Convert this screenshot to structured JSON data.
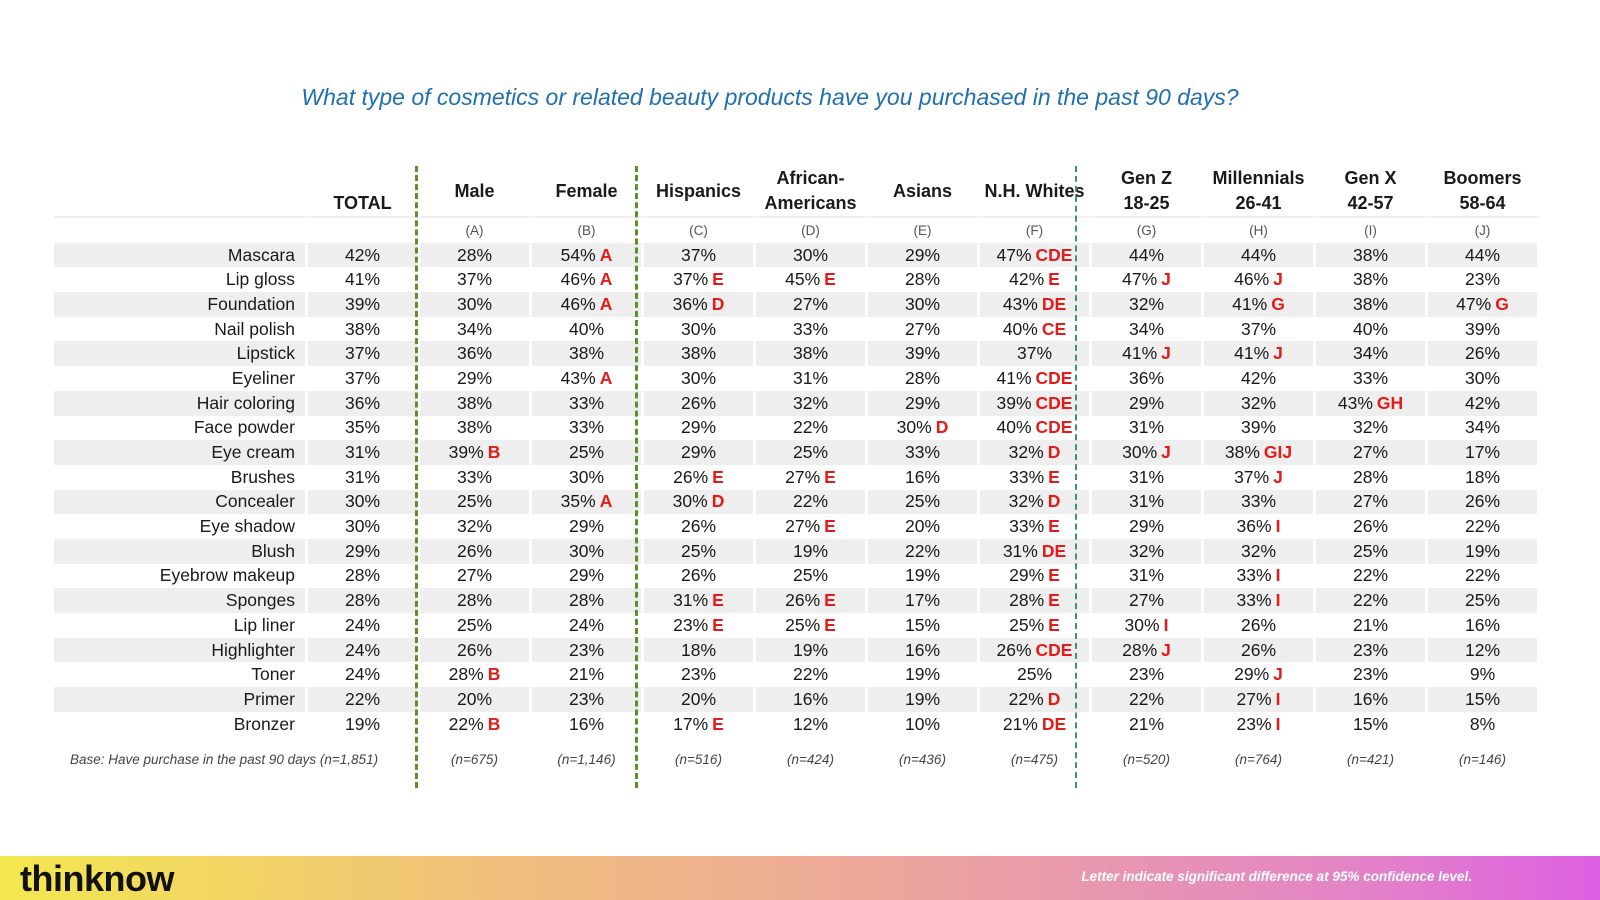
{
  "title": "What type of cosmetics or related beauty products have you purchased in the past 90 days?",
  "chart_data": {
    "type": "table",
    "columns": [
      {
        "name": "Male",
        "letter": "(A)",
        "n": "(n=675)"
      },
      {
        "name": "Female",
        "letter": "(B)",
        "n": "(n=1,146)"
      },
      {
        "name": "Hispanics",
        "letter": "(C)",
        "n": "(n=516)"
      },
      {
        "name": "African-\nAmericans",
        "letter": "(D)",
        "n": "(n=424)"
      },
      {
        "name": "Asians",
        "letter": "(E)",
        "n": "(n=436)"
      },
      {
        "name": "N.H. Whites",
        "letter": "(F)",
        "n": "(n=475)"
      },
      {
        "name": "Gen Z\n18-25",
        "letter": "(G)",
        "n": "(n=520)"
      },
      {
        "name": "Millennials\n26-41",
        "letter": "(H)",
        "n": "(n=764)"
      },
      {
        "name": "Gen X\n42-57",
        "letter": "(I)",
        "n": "(n=421)"
      },
      {
        "name": "Boomers\n58-64",
        "letter": "(J)",
        "n": "(n=146)"
      }
    ],
    "total_header": "TOTAL",
    "base_note": "Base: Have purchase in the past 90 days (n=1,851)",
    "rows": [
      {
        "label": "Mascara",
        "total": "42%",
        "cells": [
          [
            "28%",
            ""
          ],
          [
            "54%",
            "A"
          ],
          [
            "37%",
            ""
          ],
          [
            "30%",
            ""
          ],
          [
            "29%",
            ""
          ],
          [
            "47%",
            "CDE"
          ],
          [
            "44%",
            ""
          ],
          [
            "44%",
            ""
          ],
          [
            "38%",
            ""
          ],
          [
            "44%",
            ""
          ]
        ]
      },
      {
        "label": "Lip gloss",
        "total": "41%",
        "cells": [
          [
            "37%",
            ""
          ],
          [
            "46%",
            "A"
          ],
          [
            "37%",
            "E"
          ],
          [
            "45%",
            "E"
          ],
          [
            "28%",
            ""
          ],
          [
            "42%",
            "E"
          ],
          [
            "47%",
            "J"
          ],
          [
            "46%",
            "J"
          ],
          [
            "38%",
            ""
          ],
          [
            "23%",
            ""
          ]
        ]
      },
      {
        "label": "Foundation",
        "total": "39%",
        "cells": [
          [
            "30%",
            ""
          ],
          [
            "46%",
            "A"
          ],
          [
            "36%",
            "D"
          ],
          [
            "27%",
            ""
          ],
          [
            "30%",
            ""
          ],
          [
            "43%",
            "DE"
          ],
          [
            "32%",
            ""
          ],
          [
            "41%",
            "G"
          ],
          [
            "38%",
            ""
          ],
          [
            "47%",
            "G"
          ]
        ]
      },
      {
        "label": "Nail polish",
        "total": "38%",
        "cells": [
          [
            "34%",
            ""
          ],
          [
            "40%",
            ""
          ],
          [
            "30%",
            ""
          ],
          [
            "33%",
            ""
          ],
          [
            "27%",
            ""
          ],
          [
            "40%",
            "CE"
          ],
          [
            "34%",
            ""
          ],
          [
            "37%",
            ""
          ],
          [
            "40%",
            ""
          ],
          [
            "39%",
            ""
          ]
        ]
      },
      {
        "label": "Lipstick",
        "total": "37%",
        "cells": [
          [
            "36%",
            ""
          ],
          [
            "38%",
            ""
          ],
          [
            "38%",
            ""
          ],
          [
            "38%",
            ""
          ],
          [
            "39%",
            ""
          ],
          [
            "37%",
            ""
          ],
          [
            "41%",
            "J"
          ],
          [
            "41%",
            "J"
          ],
          [
            "34%",
            ""
          ],
          [
            "26%",
            ""
          ]
        ]
      },
      {
        "label": "Eyeliner",
        "total": "37%",
        "cells": [
          [
            "29%",
            ""
          ],
          [
            "43%",
            "A"
          ],
          [
            "30%",
            ""
          ],
          [
            "31%",
            ""
          ],
          [
            "28%",
            ""
          ],
          [
            "41%",
            "CDE"
          ],
          [
            "36%",
            ""
          ],
          [
            "42%",
            ""
          ],
          [
            "33%",
            ""
          ],
          [
            "30%",
            ""
          ]
        ]
      },
      {
        "label": "Hair coloring",
        "total": "36%",
        "cells": [
          [
            "38%",
            ""
          ],
          [
            "33%",
            ""
          ],
          [
            "26%",
            ""
          ],
          [
            "32%",
            ""
          ],
          [
            "29%",
            ""
          ],
          [
            "39%",
            "CDE"
          ],
          [
            "29%",
            ""
          ],
          [
            "32%",
            ""
          ],
          [
            "43%",
            "GH"
          ],
          [
            "42%",
            ""
          ]
        ]
      },
      {
        "label": "Face powder",
        "total": "35%",
        "cells": [
          [
            "38%",
            ""
          ],
          [
            "33%",
            ""
          ],
          [
            "29%",
            ""
          ],
          [
            "22%",
            ""
          ],
          [
            "30%",
            "D"
          ],
          [
            "40%",
            "CDE"
          ],
          [
            "31%",
            ""
          ],
          [
            "39%",
            ""
          ],
          [
            "32%",
            ""
          ],
          [
            "34%",
            ""
          ]
        ]
      },
      {
        "label": "Eye cream",
        "total": "31%",
        "cells": [
          [
            "39%",
            "B"
          ],
          [
            "25%",
            ""
          ],
          [
            "29%",
            ""
          ],
          [
            "25%",
            ""
          ],
          [
            "33%",
            ""
          ],
          [
            "32%",
            "D"
          ],
          [
            "30%",
            "J"
          ],
          [
            "38%",
            "GIJ"
          ],
          [
            "27%",
            ""
          ],
          [
            "17%",
            ""
          ]
        ]
      },
      {
        "label": "Brushes",
        "total": "31%",
        "cells": [
          [
            "33%",
            ""
          ],
          [
            "30%",
            ""
          ],
          [
            "26%",
            "E"
          ],
          [
            "27%",
            "E"
          ],
          [
            "16%",
            ""
          ],
          [
            "33%",
            "E"
          ],
          [
            "31%",
            ""
          ],
          [
            "37%",
            "J"
          ],
          [
            "28%",
            ""
          ],
          [
            "18%",
            ""
          ]
        ]
      },
      {
        "label": "Concealer",
        "total": "30%",
        "cells": [
          [
            "25%",
            ""
          ],
          [
            "35%",
            "A"
          ],
          [
            "30%",
            "D"
          ],
          [
            "22%",
            ""
          ],
          [
            "25%",
            ""
          ],
          [
            "32%",
            "D"
          ],
          [
            "31%",
            ""
          ],
          [
            "33%",
            ""
          ],
          [
            "27%",
            ""
          ],
          [
            "26%",
            ""
          ]
        ]
      },
      {
        "label": "Eye shadow",
        "total": "30%",
        "cells": [
          [
            "32%",
            ""
          ],
          [
            "29%",
            ""
          ],
          [
            "26%",
            ""
          ],
          [
            "27%",
            "E"
          ],
          [
            "20%",
            ""
          ],
          [
            "33%",
            "E"
          ],
          [
            "29%",
            ""
          ],
          [
            "36%",
            "I"
          ],
          [
            "26%",
            ""
          ],
          [
            "22%",
            ""
          ]
        ]
      },
      {
        "label": "Blush",
        "total": "29%",
        "cells": [
          [
            "26%",
            ""
          ],
          [
            "30%",
            ""
          ],
          [
            "25%",
            ""
          ],
          [
            "19%",
            ""
          ],
          [
            "22%",
            ""
          ],
          [
            "31%",
            "DE"
          ],
          [
            "32%",
            ""
          ],
          [
            "32%",
            ""
          ],
          [
            "25%",
            ""
          ],
          [
            "19%",
            ""
          ]
        ]
      },
      {
        "label": "Eyebrow makeup",
        "total": "28%",
        "cells": [
          [
            "27%",
            ""
          ],
          [
            "29%",
            ""
          ],
          [
            "26%",
            ""
          ],
          [
            "25%",
            ""
          ],
          [
            "19%",
            ""
          ],
          [
            "29%",
            "E"
          ],
          [
            "31%",
            ""
          ],
          [
            "33%",
            "I"
          ],
          [
            "22%",
            ""
          ],
          [
            "22%",
            ""
          ]
        ]
      },
      {
        "label": "Sponges",
        "total": "28%",
        "cells": [
          [
            "28%",
            ""
          ],
          [
            "28%",
            ""
          ],
          [
            "31%",
            "E"
          ],
          [
            "26%",
            "E"
          ],
          [
            "17%",
            ""
          ],
          [
            "28%",
            "E"
          ],
          [
            "27%",
            ""
          ],
          [
            "33%",
            "I"
          ],
          [
            "22%",
            ""
          ],
          [
            "25%",
            ""
          ]
        ]
      },
      {
        "label": "Lip liner",
        "total": "24%",
        "cells": [
          [
            "25%",
            ""
          ],
          [
            "24%",
            ""
          ],
          [
            "23%",
            "E"
          ],
          [
            "25%",
            "E"
          ],
          [
            "15%",
            ""
          ],
          [
            "25%",
            "E"
          ],
          [
            "30%",
            "I"
          ],
          [
            "26%",
            ""
          ],
          [
            "21%",
            ""
          ],
          [
            "16%",
            ""
          ]
        ]
      },
      {
        "label": "Highlighter",
        "total": "24%",
        "cells": [
          [
            "26%",
            ""
          ],
          [
            "23%",
            ""
          ],
          [
            "18%",
            ""
          ],
          [
            "19%",
            ""
          ],
          [
            "16%",
            ""
          ],
          [
            "26%",
            "CDE"
          ],
          [
            "28%",
            "J"
          ],
          [
            "26%",
            ""
          ],
          [
            "23%",
            ""
          ],
          [
            "12%",
            ""
          ]
        ]
      },
      {
        "label": "Toner",
        "total": "24%",
        "cells": [
          [
            "28%",
            "B"
          ],
          [
            "21%",
            ""
          ],
          [
            "23%",
            ""
          ],
          [
            "22%",
            ""
          ],
          [
            "19%",
            ""
          ],
          [
            "25%",
            ""
          ],
          [
            "23%",
            ""
          ],
          [
            "29%",
            "J"
          ],
          [
            "23%",
            ""
          ],
          [
            "9%",
            ""
          ]
        ]
      },
      {
        "label": "Primer",
        "total": "22%",
        "cells": [
          [
            "20%",
            ""
          ],
          [
            "23%",
            ""
          ],
          [
            "20%",
            ""
          ],
          [
            "16%",
            ""
          ],
          [
            "19%",
            ""
          ],
          [
            "22%",
            "D"
          ],
          [
            "22%",
            ""
          ],
          [
            "27%",
            "I"
          ],
          [
            "16%",
            ""
          ],
          [
            "15%",
            ""
          ]
        ]
      },
      {
        "label": "Bronzer",
        "total": "19%",
        "cells": [
          [
            "22%",
            "B"
          ],
          [
            "16%",
            ""
          ],
          [
            "17%",
            "E"
          ],
          [
            "12%",
            ""
          ],
          [
            "10%",
            ""
          ],
          [
            "21%",
            "DE"
          ],
          [
            "21%",
            ""
          ],
          [
            "23%",
            "I"
          ],
          [
            "15%",
            ""
          ],
          [
            "8%",
            ""
          ]
        ]
      }
    ]
  },
  "footer": {
    "logo": "thinknow",
    "note": "Letter indicate significant difference at 95% confidence level."
  }
}
